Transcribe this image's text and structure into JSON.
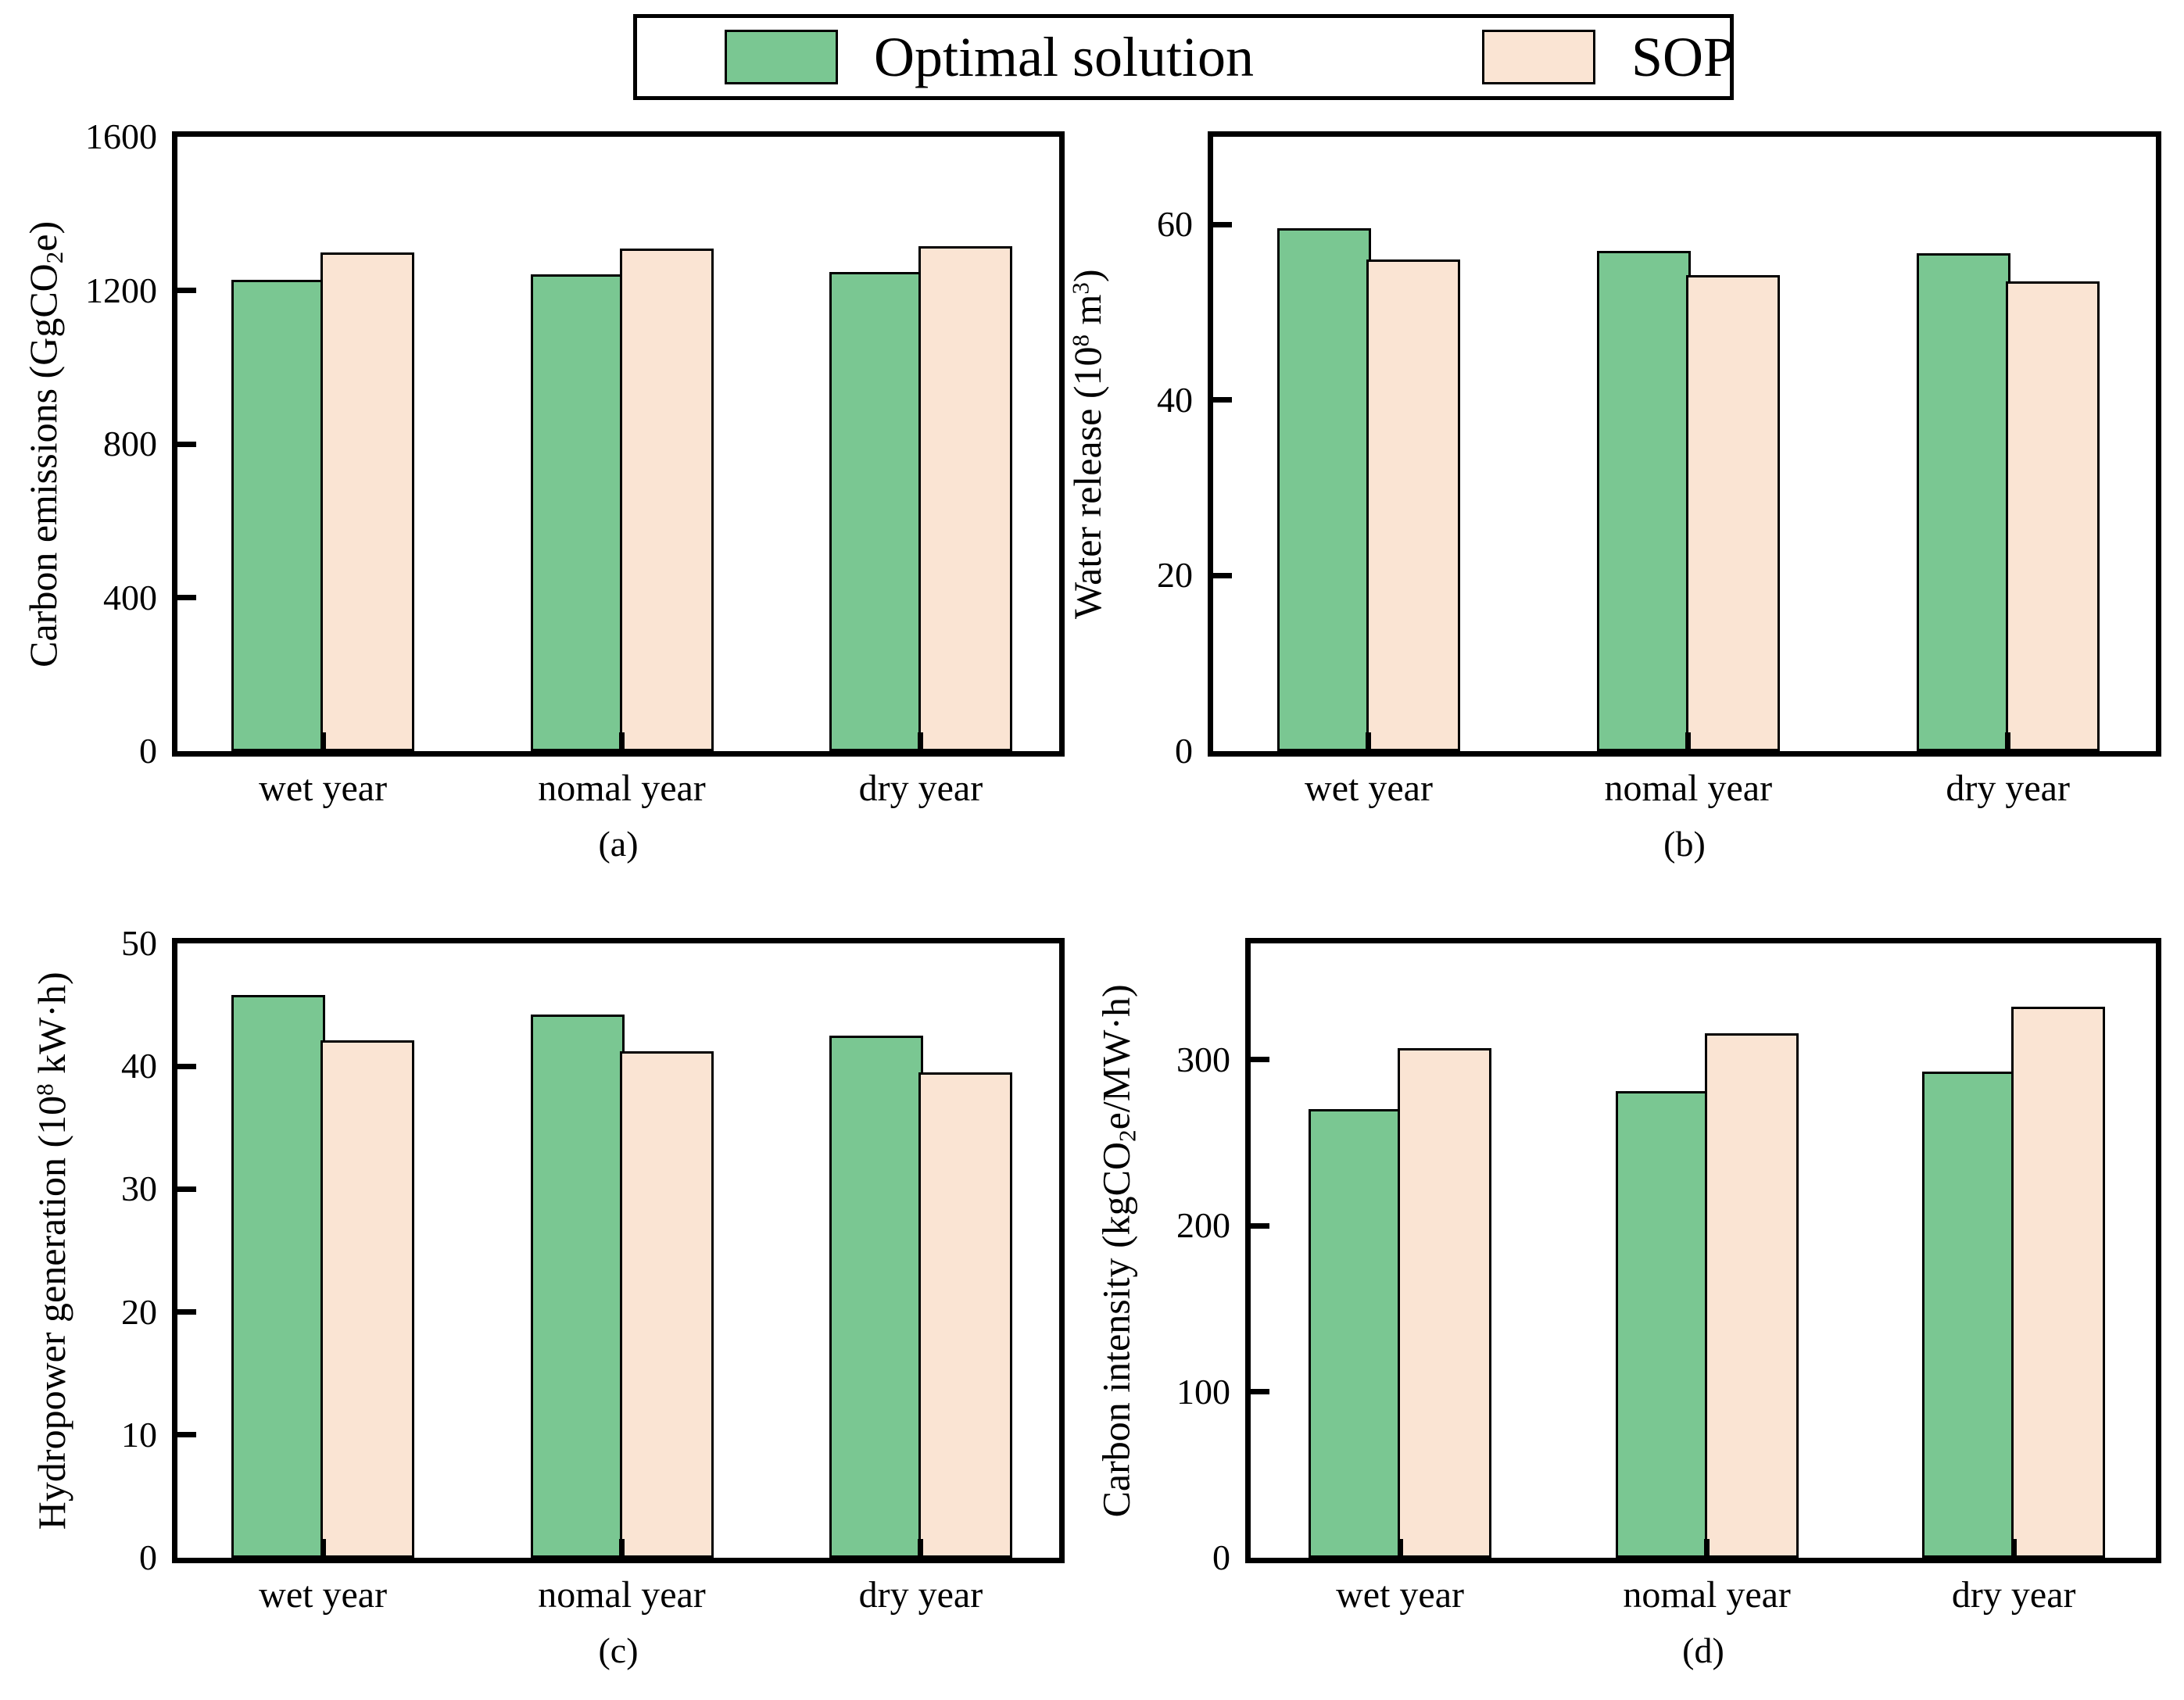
{
  "legend": {
    "items": [
      {
        "label": "Optimal solution",
        "color": "#7ac792"
      },
      {
        "label": "SOP",
        "color": "#fae4d3"
      }
    ],
    "border_color": "#000000"
  },
  "categories": [
    "wet year",
    "nomal year",
    "dry year"
  ],
  "chart_data": [
    {
      "id": "a",
      "type": "bar",
      "caption": "(a)",
      "ylabel_segments": [
        {
          "text": "Carbon emissions (GgCO"
        },
        {
          "text": "2",
          "script": "sub"
        },
        {
          "text": "e)"
        }
      ],
      "categories": [
        "wet year",
        "nomal year",
        "dry year"
      ],
      "ylim": [
        0,
        1600
      ],
      "yticks": [
        0,
        400,
        800,
        1200,
        1600
      ],
      "grid": false,
      "series": [
        {
          "name": "Optimal solution",
          "values": [
            1228,
            1242,
            1247
          ]
        },
        {
          "name": "SOP",
          "values": [
            1298,
            1309,
            1316
          ]
        }
      ]
    },
    {
      "id": "b",
      "type": "bar",
      "caption": "(b)",
      "ylabel_segments": [
        {
          "text": "Water release (10"
        },
        {
          "text": "8",
          "script": "sup"
        },
        {
          "text": " m"
        },
        {
          "text": "3",
          "script": "sup"
        },
        {
          "text": ")"
        }
      ],
      "categories": [
        "wet year",
        "nomal year",
        "dry year"
      ],
      "ylim": [
        0,
        70
      ],
      "yticks": [
        0,
        20,
        40,
        60
      ],
      "grid": false,
      "series": [
        {
          "name": "Optimal solution",
          "values": [
            59.6,
            57.0,
            56.7
          ]
        },
        {
          "name": "SOP",
          "values": [
            56.0,
            54.2,
            53.5
          ]
        }
      ]
    },
    {
      "id": "c",
      "type": "bar",
      "caption": "(c)",
      "ylabel_segments": [
        {
          "text": "Hydropower generation (10"
        },
        {
          "text": "8",
          "script": "sup"
        },
        {
          "text": " kW·h)"
        }
      ],
      "categories": [
        "wet year",
        "nomal year",
        "dry year"
      ],
      "ylim": [
        0,
        50
      ],
      "yticks": [
        0,
        10,
        20,
        30,
        40,
        50
      ],
      "grid": false,
      "series": [
        {
          "name": "Optimal solution",
          "values": [
            45.8,
            44.2,
            42.5
          ]
        },
        {
          "name": "SOP",
          "values": [
            42.1,
            41.2,
            39.5
          ]
        }
      ]
    },
    {
      "id": "d",
      "type": "bar",
      "caption": "(d)",
      "ylabel_segments": [
        {
          "text": "Carbon intensity (kgCO"
        },
        {
          "text": "2",
          "script": "sub"
        },
        {
          "text": "e/MW·h)"
        }
      ],
      "categories": [
        "wet year",
        "nomal year",
        "dry year"
      ],
      "ylim": [
        0,
        370
      ],
      "yticks": [
        0,
        100,
        200,
        300
      ],
      "grid": false,
      "series": [
        {
          "name": "Optimal solution",
          "values": [
            270,
            281,
            293
          ]
        },
        {
          "name": "SOP",
          "values": [
            307,
            316,
            332
          ]
        }
      ]
    }
  ]
}
